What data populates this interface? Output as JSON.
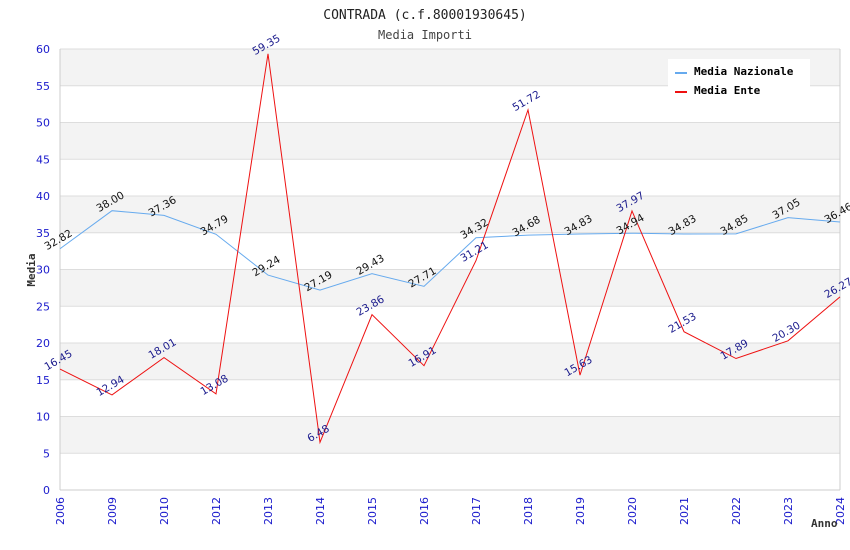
{
  "chart_data": {
    "type": "line",
    "title": "CONTRADA (c.f.80001930645)",
    "subtitle": "Media Importi",
    "xlabel": "Anno",
    "ylabel": "Media",
    "ylim": [
      0,
      60
    ],
    "yticks": [
      "0",
      "5",
      "10",
      "15",
      "20",
      "25",
      "30",
      "35",
      "40",
      "45",
      "50",
      "55",
      "60"
    ],
    "grid": true,
    "legend_position": "top-right",
    "categories": [
      "2006",
      "2009",
      "2010",
      "2012",
      "2013",
      "2014",
      "2015",
      "2016",
      "2017",
      "2018",
      "2019",
      "2020",
      "2021",
      "2022",
      "2023",
      "2024"
    ],
    "series": [
      {
        "name": "Media Nazionale",
        "color": "#66aaee",
        "label_color": "#111111",
        "values": [
          32.82,
          38.0,
          37.36,
          34.79,
          29.24,
          27.19,
          29.43,
          27.71,
          34.32,
          34.68,
          34.83,
          34.94,
          34.83,
          34.85,
          37.05,
          36.46
        ],
        "labels": [
          "32.82",
          "38.00",
          "37.36",
          "34.79",
          "29.24",
          "27.19",
          "29.43",
          "27.71",
          "34.32",
          "34.68",
          "34.83",
          "34.94",
          "34.83",
          "34.85",
          "37.05",
          "36.46"
        ]
      },
      {
        "name": "Media Ente",
        "color": "#ee1111",
        "label_color": "#1a1a8c",
        "values": [
          16.45,
          12.94,
          18.01,
          13.08,
          59.35,
          6.48,
          23.86,
          16.91,
          31.21,
          51.72,
          15.63,
          37.97,
          21.53,
          17.89,
          20.3,
          26.27
        ],
        "labels": [
          "16.45",
          "12.94",
          "18.01",
          "13.08",
          "59.35",
          "6.48",
          "23.86",
          "16.91",
          "31.21",
          "51.72",
          "15.63",
          "37.97",
          "21.53",
          "17.89",
          "20.30",
          "26.27"
        ]
      }
    ]
  }
}
